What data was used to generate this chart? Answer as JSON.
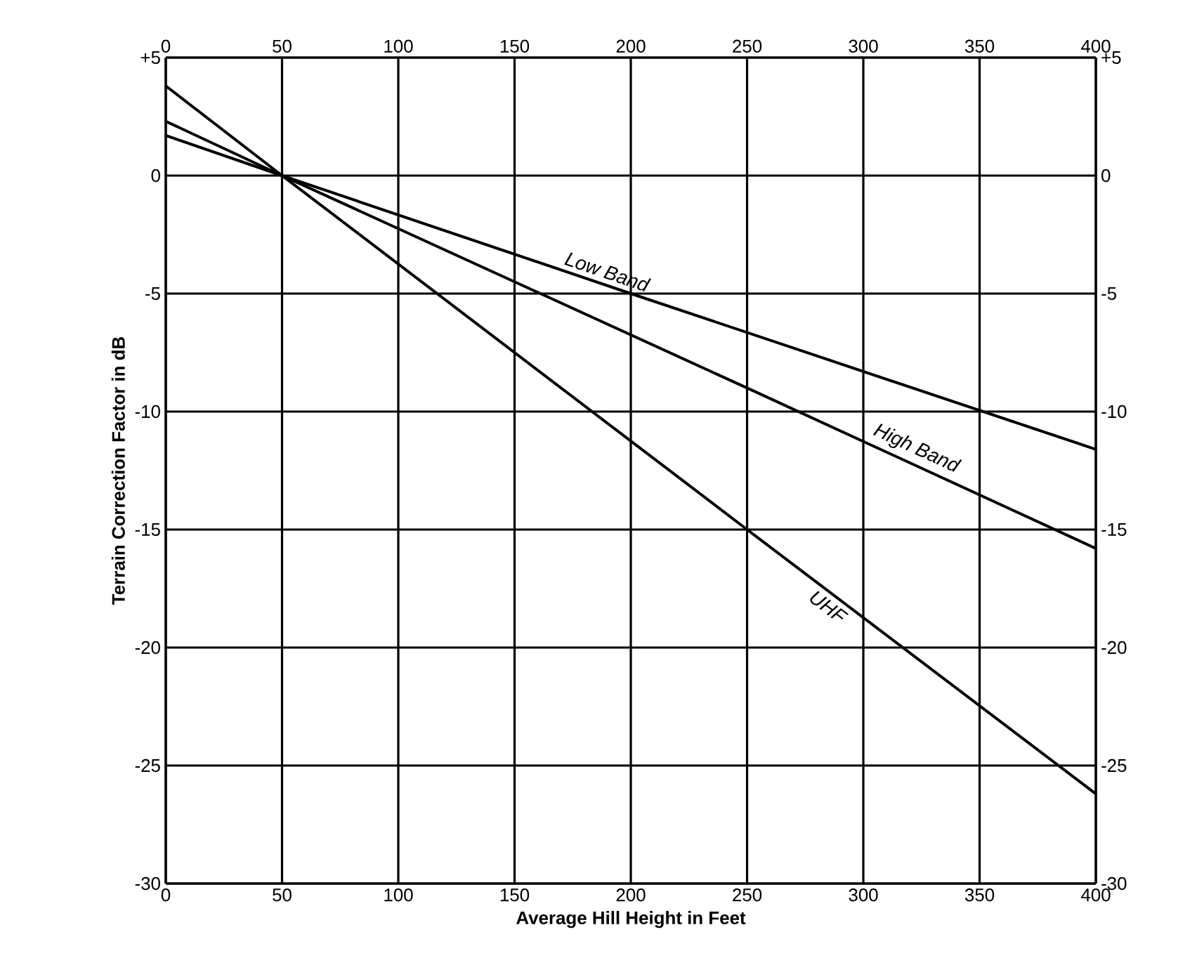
{
  "chart_data": {
    "type": "line",
    "xlabel": "Average Hill Height in Feet",
    "ylabel": "Terrain Correction Factor in dB",
    "xlim": [
      0,
      400
    ],
    "xticks": [
      0,
      50,
      100,
      150,
      200,
      250,
      300,
      350,
      400
    ],
    "ylim": [
      -30,
      5
    ],
    "yticks": [
      -30,
      -25,
      -20,
      -15,
      -10,
      -5,
      0,
      {
        "value": 5,
        "label": "+5"
      }
    ],
    "x2lim": [
      0,
      400
    ],
    "x2ticks": [
      0,
      50,
      100,
      150,
      200,
      250,
      300,
      350,
      400
    ],
    "y2lim": [
      -30,
      5
    ],
    "y2ticks": [
      -30,
      -25,
      -20,
      -15,
      -10,
      -5,
      0,
      {
        "value": 5,
        "label": "+5"
      }
    ],
    "grid": true,
    "series": [
      {
        "name": "Low Band",
        "color": "#000000",
        "x": [
          0,
          50,
          200,
          400
        ],
        "values": [
          1.7,
          0,
          -5,
          -11.6
        ]
      },
      {
        "name": "High Band",
        "color": "#000000",
        "x": [
          0,
          50,
          250,
          400
        ],
        "values": [
          2.3,
          0,
          -9,
          -15.8
        ]
      },
      {
        "name": "UHF",
        "color": "#000000",
        "x": [
          0,
          50,
          250,
          400
        ],
        "values": [
          3.8,
          0,
          -15,
          -26.2
        ]
      }
    ]
  }
}
